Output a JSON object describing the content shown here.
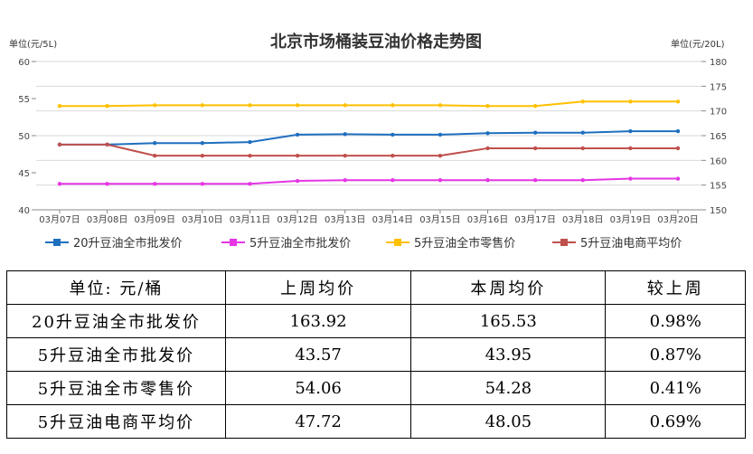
{
  "chart_data": {
    "type": "line",
    "title": "北京市场桶装豆油价格走势图",
    "left_axis_unit": "单位(元/5L)",
    "right_axis_unit": "单位(元/20L)",
    "left_ylim": [
      40,
      60
    ],
    "right_ylim": [
      150,
      180
    ],
    "left_ticks": [
      "40",
      "45",
      "50",
      "55",
      "60"
    ],
    "right_ticks": [
      "150",
      "155",
      "160",
      "165",
      "170",
      "175",
      "180"
    ],
    "categories": [
      "03月07日",
      "03月08日",
      "03月09日",
      "03月10日",
      "03月11日",
      "03月12日",
      "03月13日",
      "03月14日",
      "03月15日",
      "03月16日",
      "03月17日",
      "03月18日",
      "03月19日",
      "03月20日"
    ],
    "grid": true,
    "legend_position": "bottom",
    "series": [
      {
        "name": "20升豆油全市批发价",
        "axis": "right",
        "color": "#1f6fbf",
        "values": [
          163.2,
          163.2,
          163.5,
          163.5,
          163.7,
          165.2,
          165.3,
          165.2,
          165.2,
          165.5,
          165.6,
          165.6,
          165.9,
          165.9
        ]
      },
      {
        "name": "5升豆油全市批发价",
        "axis": "left",
        "color": "#e535e5",
        "values": [
          43.5,
          43.5,
          43.5,
          43.5,
          43.5,
          43.9,
          44.0,
          44.0,
          44.0,
          44.0,
          44.0,
          44.0,
          44.2,
          44.2
        ]
      },
      {
        "name": "5升豆油全市零售价",
        "axis": "left",
        "color": "#ffc000",
        "values": [
          54.0,
          54.0,
          54.1,
          54.1,
          54.1,
          54.1,
          54.1,
          54.1,
          54.1,
          54.0,
          54.0,
          54.6,
          54.6,
          54.6
        ]
      },
      {
        "name": "5升豆油电商平均价",
        "axis": "left",
        "color": "#c0504d",
        "values": [
          48.8,
          48.8,
          47.3,
          47.3,
          47.3,
          47.3,
          47.3,
          47.3,
          47.3,
          48.3,
          48.3,
          48.3,
          48.3,
          48.3
        ]
      }
    ]
  },
  "table": {
    "headers": [
      "单位: 元/桶",
      "上周均价",
      "本周均价",
      "较上周"
    ],
    "rows": [
      [
        "20升豆油全市批发价",
        "163.92",
        "165.53",
        "0.98%"
      ],
      [
        "5升豆油全市批发价",
        "43.57",
        "43.95",
        "0.87%"
      ],
      [
        "5升豆油全市零售价",
        "54.06",
        "54.28",
        "0.41%"
      ],
      [
        "5升豆油电商平均价",
        "47.72",
        "48.05",
        "0.69%"
      ]
    ]
  }
}
